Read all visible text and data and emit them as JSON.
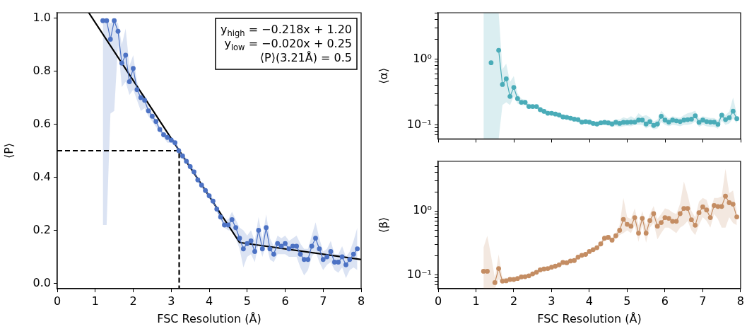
{
  "chart_data": [
    {
      "type": "line",
      "xlabel": "FSC Resolution (Å)",
      "ylabel": "⟨P⟩",
      "xlim": [
        0,
        8
      ],
      "xticks": [
        0,
        1,
        2,
        3,
        4,
        5,
        6,
        7,
        8
      ],
      "ylim": [
        -0.02,
        1.02
      ],
      "yticks": [
        {
          "value": 0,
          "label": "0.0"
        },
        0.2,
        0.4,
        0.6,
        0.8,
        {
          "value": 1,
          "label": "1.0"
        }
      ],
      "marker": "circle",
      "x": [
        1.2,
        1.3,
        1.4,
        1.5,
        1.6,
        1.7,
        1.8,
        1.9,
        2.0,
        2.1,
        2.2,
        2.3,
        2.4,
        2.5,
        2.6,
        2.7,
        2.8,
        2.9,
        3.0,
        3.1,
        3.2,
        3.3,
        3.4,
        3.5,
        3.6,
        3.7,
        3.8,
        3.9,
        4.0,
        4.1,
        4.2,
        4.3,
        4.4,
        4.5,
        4.6,
        4.7,
        4.8,
        4.9,
        5.0,
        5.1,
        5.2,
        5.3,
        5.4,
        5.5,
        5.6,
        5.7,
        5.8,
        5.9,
        6.0,
        6.1,
        6.2,
        6.3,
        6.4,
        6.5,
        6.6,
        6.7,
        6.8,
        6.9,
        7.0,
        7.1,
        7.2,
        7.3,
        7.4,
        7.5,
        7.6,
        7.7,
        7.8,
        7.9
      ],
      "annotations": [
        "y$_{high}$ = −0.218x + 1.20",
        "y$_{low}$ = −0.020x + 0.25",
        "⟨P⟩(3.21Å) = 0.5"
      ],
      "series": [
        {
          "color": "#4c72c4",
          "values": [
            0.99,
            0.99,
            0.92,
            0.99,
            0.95,
            0.83,
            0.86,
            0.76,
            0.81,
            0.73,
            0.7,
            0.69,
            0.65,
            0.63,
            0.61,
            0.58,
            0.56,
            0.55,
            0.54,
            0.53,
            0.5,
            0.48,
            0.46,
            0.44,
            0.42,
            0.39,
            0.37,
            0.35,
            0.33,
            0.31,
            0.28,
            0.25,
            0.22,
            0.22,
            0.24,
            0.21,
            0.17,
            0.13,
            0.15,
            0.16,
            0.12,
            0.2,
            0.13,
            0.21,
            0.13,
            0.11,
            0.15,
            0.14,
            0.15,
            0.13,
            0.14,
            0.14,
            0.11,
            0.09,
            0.09,
            0.14,
            0.17,
            0.13,
            0.09,
            0.1,
            0.12,
            0.08,
            0.08,
            0.1,
            0.07,
            0.09,
            0.11,
            0.13
          ],
          "lower": [
            0.22,
            0.22,
            0.64,
            0.65,
            0.9,
            0.74,
            0.76,
            0.71,
            0.73,
            0.69,
            0.65,
            0.66,
            0.63,
            0.61,
            0.59,
            0.57,
            0.55,
            0.53,
            0.53,
            0.52,
            0.49,
            0.47,
            0.45,
            0.43,
            0.41,
            0.38,
            0.36,
            0.34,
            0.32,
            0.3,
            0.27,
            0.24,
            0.21,
            0.2,
            0.2,
            0.17,
            0.13,
            0.06,
            0.1,
            0.11,
            0.08,
            0.15,
            0.1,
            0.15,
            0.09,
            0.08,
            0.11,
            0.11,
            0.11,
            0.1,
            0.1,
            0.1,
            0.06,
            0.03,
            0.05,
            0.1,
            0.12,
            0.08,
            0.05,
            0.07,
            0.08,
            0.05,
            0.04,
            0.06,
            0.02,
            0.05,
            0.06,
            0.05
          ],
          "upper": [
            0.99,
            0.99,
            0.98,
            0.99,
            0.98,
            0.9,
            0.96,
            0.82,
            0.86,
            0.76,
            0.72,
            0.71,
            0.67,
            0.64,
            0.62,
            0.59,
            0.57,
            0.56,
            0.55,
            0.54,
            0.51,
            0.49,
            0.47,
            0.45,
            0.43,
            0.4,
            0.38,
            0.36,
            0.34,
            0.32,
            0.29,
            0.26,
            0.24,
            0.24,
            0.27,
            0.24,
            0.21,
            0.2,
            0.18,
            0.2,
            0.16,
            0.25,
            0.17,
            0.26,
            0.17,
            0.14,
            0.18,
            0.17,
            0.18,
            0.16,
            0.17,
            0.18,
            0.15,
            0.13,
            0.13,
            0.18,
            0.23,
            0.17,
            0.12,
            0.13,
            0.16,
            0.11,
            0.11,
            0.14,
            0.1,
            0.12,
            0.16,
            0.21
          ]
        },
        {
          "type": "line",
          "color": "#000000",
          "marker": "none",
          "x": [
            0.83,
            4.8,
            8
          ],
          "values": [
            1.02,
            0.154,
            0.09
          ]
        },
        {
          "type": "line",
          "color": "#000000",
          "marker": "none",
          "line_style": "dashed",
          "x": [
            0,
            3.21,
            3.21
          ],
          "values": [
            0.5,
            0.5,
            -0.02
          ]
        }
      ]
    },
    {
      "type": "line",
      "ylabel": "⟨α⟩",
      "log": "y",
      "tick_labels": "y",
      "xlim": [
        0,
        8
      ],
      "xticks": [
        0,
        1,
        2,
        3,
        4,
        5,
        6,
        7,
        8
      ],
      "ylim": [
        0.061,
        5.06
      ],
      "marker": "circle",
      "yticks": [
        {
          "value": 0.07,
          "label": null
        },
        {
          "value": 0.08,
          "label": null
        },
        {
          "value": 0.09,
          "label": null
        },
        {
          "value": 0.1,
          "label": "10⁻¹"
        },
        {
          "value": 0.2,
          "label": null
        },
        {
          "value": 0.3,
          "label": null
        },
        {
          "value": 0.4,
          "label": null
        },
        {
          "value": 0.5,
          "label": null
        },
        {
          "value": 0.6,
          "label": null
        },
        {
          "value": 0.7,
          "label": null
        },
        {
          "value": 0.8,
          "label": null
        },
        {
          "value": 0.9,
          "label": null
        },
        {
          "value": 1,
          "label": "10⁰"
        },
        {
          "value": 2,
          "label": null
        },
        {
          "value": 3,
          "label": null
        },
        {
          "value": 4,
          "label": null
        },
        {
          "value": 5,
          "label": null
        }
      ],
      "x": [
        1.2,
        1.3,
        1.4,
        1.5,
        1.6,
        1.7,
        1.8,
        1.9,
        2.0,
        2.1,
        2.2,
        2.3,
        2.4,
        2.5,
        2.6,
        2.7,
        2.8,
        2.9,
        3.0,
        3.1,
        3.2,
        3.3,
        3.4,
        3.5,
        3.6,
        3.7,
        3.8,
        3.9,
        4.0,
        4.1,
        4.2,
        4.3,
        4.4,
        4.5,
        4.6,
        4.7,
        4.8,
        4.9,
        5.0,
        5.1,
        5.2,
        5.3,
        5.4,
        5.5,
        5.6,
        5.7,
        5.8,
        5.9,
        6.0,
        6.1,
        6.2,
        6.3,
        6.4,
        6.5,
        6.6,
        6.7,
        6.8,
        6.9,
        7.0,
        7.1,
        7.2,
        7.3,
        7.4,
        7.5,
        7.6,
        7.7,
        7.8,
        7.9
      ],
      "series": [
        {
          "color": "#4aacb8",
          "values": [
            null,
            null,
            0.88,
            null,
            1.36,
            0.41,
            0.5,
            0.27,
            0.37,
            0.25,
            0.22,
            0.22,
            0.19,
            0.19,
            0.19,
            0.17,
            0.16,
            0.15,
            0.15,
            0.146,
            0.141,
            0.132,
            0.13,
            0.126,
            0.122,
            0.12,
            0.11,
            0.112,
            0.11,
            0.105,
            0.103,
            0.107,
            0.109,
            0.107,
            0.103,
            0.109,
            0.105,
            0.109,
            0.109,
            0.11,
            0.11,
            0.118,
            0.118,
            0.103,
            0.112,
            0.098,
            0.103,
            0.135,
            0.118,
            0.11,
            0.118,
            0.115,
            0.112,
            0.118,
            0.12,
            0.122,
            0.137,
            0.109,
            0.118,
            0.112,
            0.11,
            0.11,
            0.102,
            0.14,
            0.12,
            0.128,
            0.161,
            0.124
          ],
          "lower": [
            0.061,
            0.061,
            0.061,
            0.061,
            0.061,
            0.2,
            0.22,
            0.2,
            0.27,
            0.21,
            0.2,
            0.2,
            0.175,
            0.175,
            0.175,
            0.16,
            0.15,
            0.14,
            0.14,
            0.136,
            0.131,
            0.123,
            0.121,
            0.117,
            0.113,
            0.111,
            0.102,
            0.104,
            0.102,
            0.097,
            0.095,
            0.099,
            0.1,
            0.097,
            0.093,
            0.096,
            0.092,
            0.095,
            0.096,
            0.095,
            0.1,
            0.1,
            0.1,
            0.088,
            0.095,
            0.085,
            0.088,
            0.11,
            0.1,
            0.095,
            0.1,
            0.098,
            0.095,
            0.1,
            0.1,
            0.103,
            0.112,
            0.093,
            0.1,
            0.095,
            0.093,
            0.093,
            0.087,
            0.115,
            0.1,
            0.105,
            0.125,
            0.105
          ],
          "upper": [
            5.06,
            5.06,
            5.06,
            5.06,
            5.06,
            0.7,
            0.85,
            0.45,
            0.55,
            0.3,
            0.25,
            0.24,
            0.21,
            0.205,
            0.2,
            0.185,
            0.175,
            0.165,
            0.16,
            0.156,
            0.151,
            0.141,
            0.139,
            0.135,
            0.131,
            0.129,
            0.118,
            0.12,
            0.118,
            0.113,
            0.111,
            0.115,
            0.118,
            0.118,
            0.114,
            0.122,
            0.12,
            0.13,
            0.125,
            0.135,
            0.125,
            0.15,
            0.135,
            0.14,
            0.13,
            0.112,
            0.12,
            0.165,
            0.14,
            0.125,
            0.135,
            0.13,
            0.128,
            0.14,
            0.15,
            0.155,
            0.165,
            0.125,
            0.135,
            0.13,
            0.127,
            0.127,
            0.117,
            0.16,
            0.14,
            0.16,
            0.26,
            0.145
          ]
        }
      ]
    },
    {
      "type": "line",
      "ylabel": "⟨β⟩",
      "xlabel": "FSC Resolution (Å)",
      "log": "y",
      "xlim": [
        0,
        8
      ],
      "xticks": [
        0,
        1,
        2,
        3,
        4,
        5,
        6,
        7,
        8
      ],
      "ylim": [
        0.061,
        6.0
      ],
      "marker": "circle",
      "yticks": [
        {
          "value": 0.07,
          "label": null
        },
        {
          "value": 0.08,
          "label": null
        },
        {
          "value": 0.09,
          "label": null
        },
        {
          "value": 0.1,
          "label": "10⁻¹"
        },
        {
          "value": 0.2,
          "label": null
        },
        {
          "value": 0.3,
          "label": null
        },
        {
          "value": 0.4,
          "label": null
        },
        {
          "value": 0.5,
          "label": null
        },
        {
          "value": 0.6,
          "label": null
        },
        {
          "value": 0.7,
          "label": null
        },
        {
          "value": 0.8,
          "label": null
        },
        {
          "value": 0.9,
          "label": null
        },
        {
          "value": 1,
          "label": "10⁰"
        },
        {
          "value": 2,
          "label": null
        },
        {
          "value": 3,
          "label": null
        },
        {
          "value": 4,
          "label": null
        },
        {
          "value": 5,
          "label": null
        }
      ],
      "x": [
        1.2,
        1.3,
        1.4,
        1.5,
        1.6,
        1.7,
        1.8,
        1.9,
        2.0,
        2.1,
        2.2,
        2.3,
        2.4,
        2.5,
        2.6,
        2.7,
        2.8,
        2.9,
        3.0,
        3.1,
        3.2,
        3.3,
        3.4,
        3.5,
        3.6,
        3.7,
        3.8,
        3.9,
        4.0,
        4.1,
        4.2,
        4.3,
        4.4,
        4.5,
        4.6,
        4.7,
        4.8,
        4.9,
        5.0,
        5.1,
        5.2,
        5.3,
        5.4,
        5.5,
        5.6,
        5.7,
        5.8,
        5.9,
        6.0,
        6.1,
        6.2,
        6.3,
        6.4,
        6.5,
        6.6,
        6.7,
        6.8,
        6.9,
        7.0,
        7.1,
        7.2,
        7.3,
        7.4,
        7.5,
        7.6,
        7.7,
        7.8,
        7.9
      ],
      "series": [
        {
          "color": "#c48d63",
          "values": [
            0.114,
            0.114,
            null,
            0.076,
            0.126,
            0.08,
            0.081,
            0.085,
            0.085,
            0.088,
            0.093,
            0.094,
            0.097,
            0.104,
            0.11,
            0.12,
            0.124,
            0.126,
            0.132,
            0.137,
            0.144,
            0.157,
            0.155,
            0.165,
            0.168,
            0.19,
            0.203,
            0.21,
            0.233,
            0.249,
            0.267,
            0.306,
            0.375,
            0.388,
            0.35,
            0.41,
            0.5,
            0.74,
            0.62,
            0.58,
            0.79,
            0.45,
            0.77,
            0.45,
            0.71,
            0.91,
            0.58,
            0.66,
            0.79,
            0.77,
            0.69,
            0.69,
            0.91,
            1.1,
            1.1,
            0.73,
            0.6,
            0.94,
            1.16,
            1.04,
            0.79,
            1.22,
            1.18,
            1.18,
            1.71,
            1.35,
            1.28,
            0.81
          ],
          "lower": [
            0.061,
            0.061,
            0.061,
            0.061,
            0.085,
            0.075,
            0.077,
            0.081,
            0.081,
            0.084,
            0.088,
            0.089,
            0.092,
            0.099,
            0.105,
            0.114,
            0.118,
            0.12,
            0.125,
            0.13,
            0.137,
            0.149,
            0.147,
            0.157,
            0.16,
            0.18,
            0.193,
            0.2,
            0.221,
            0.237,
            0.25,
            0.28,
            0.34,
            0.36,
            0.32,
            0.37,
            0.42,
            0.45,
            0.5,
            0.45,
            0.6,
            0.33,
            0.6,
            0.32,
            0.55,
            0.65,
            0.36,
            0.45,
            0.55,
            0.55,
            0.5,
            0.45,
            0.55,
            0.6,
            0.7,
            0.5,
            0.42,
            0.6,
            0.8,
            0.7,
            0.55,
            0.9,
            0.75,
            0.55,
            0.55,
            0.8,
            0.65,
            0.6
          ],
          "upper": [
            0.27,
            0.41,
            0.2,
            0.09,
            0.21,
            0.09,
            0.09,
            0.09,
            0.09,
            0.093,
            0.098,
            0.099,
            0.102,
            0.109,
            0.116,
            0.126,
            0.13,
            0.132,
            0.139,
            0.144,
            0.151,
            0.165,
            0.163,
            0.173,
            0.176,
            0.2,
            0.213,
            0.22,
            0.245,
            0.261,
            0.285,
            0.33,
            0.41,
            0.42,
            0.38,
            0.45,
            0.6,
            1.6,
            0.8,
            0.75,
            1.1,
            0.6,
            1.0,
            0.6,
            0.9,
            1.2,
            0.75,
            0.9,
            1.1,
            1.05,
            0.95,
            0.9,
            1.3,
            2.9,
            1.8,
            1.0,
            0.8,
            1.4,
            1.6,
            1.5,
            1.0,
            1.6,
            1.6,
            1.7,
            4.6,
            1.9,
            2.1,
            1.0
          ]
        }
      ]
    }
  ]
}
